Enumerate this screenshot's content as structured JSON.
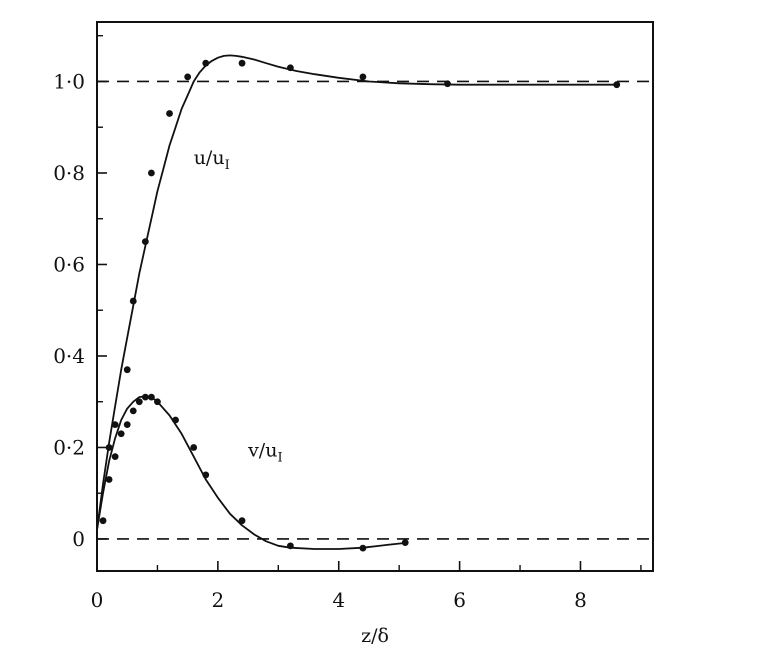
{
  "chart_data": {
    "type": "line",
    "title": "",
    "xlabel": "z/δ",
    "ylabel": "",
    "xlim": [
      0,
      9.2
    ],
    "ylim": [
      -0.07,
      1.13
    ],
    "x_ticks": [
      0,
      2,
      4,
      6,
      8
    ],
    "x_tick_labels": [
      "0",
      "2",
      "4",
      "6",
      "8"
    ],
    "y_ticks": [
      0,
      0.2,
      0.4,
      0.6,
      0.8,
      1.0
    ],
    "y_tick_labels": [
      "0",
      "0·2",
      "0·4",
      "0·6",
      "0·8",
      "1·0"
    ],
    "reference_lines": [
      {
        "y": 1.0,
        "style": "dashed"
      },
      {
        "y": 0.0,
        "style": "dashed"
      }
    ],
    "series": [
      {
        "name": "u/u",
        "name_subscript": "I",
        "color": "#111111",
        "curve": {
          "x": [
            0,
            0.1,
            0.2,
            0.3,
            0.4,
            0.5,
            0.6,
            0.7,
            0.8,
            0.9,
            1.0,
            1.1,
            1.2,
            1.3,
            1.4,
            1.5,
            1.6,
            1.7,
            1.8,
            1.9,
            2.0,
            2.1,
            2.2,
            2.3,
            2.4,
            2.6,
            2.8,
            3.0,
            3.3,
            3.6,
            4.0,
            4.5,
            5.0,
            5.5,
            6.0,
            7.0,
            8.0,
            8.65
          ],
          "y": [
            0.02,
            0.12,
            0.21,
            0.29,
            0.37,
            0.44,
            0.51,
            0.58,
            0.64,
            0.7,
            0.76,
            0.81,
            0.86,
            0.9,
            0.94,
            0.97,
            1.0,
            1.02,
            1.035,
            1.045,
            1.052,
            1.056,
            1.057,
            1.056,
            1.054,
            1.048,
            1.04,
            1.032,
            1.023,
            1.016,
            1.008,
            1.0,
            0.996,
            0.994,
            0.993,
            0.993,
            0.993,
            0.993
          ]
        },
        "points": {
          "x": [
            0.2,
            0.3,
            0.5,
            0.6,
            0.8,
            0.9,
            1.2,
            1.5,
            1.8,
            2.4,
            3.2,
            4.4,
            5.8,
            8.6
          ],
          "y": [
            0.2,
            0.25,
            0.37,
            0.52,
            0.65,
            0.8,
            0.93,
            1.01,
            1.04,
            1.04,
            1.03,
            1.01,
            0.995,
            0.993
          ]
        }
      },
      {
        "name": "v/u",
        "name_subscript": "I",
        "color": "#111111",
        "curve": {
          "x": [
            0,
            0.1,
            0.2,
            0.3,
            0.4,
            0.5,
            0.6,
            0.7,
            0.8,
            0.9,
            1.0,
            1.2,
            1.4,
            1.6,
            1.8,
            2.0,
            2.2,
            2.4,
            2.6,
            2.8,
            3.0,
            3.2,
            3.6,
            4.0,
            4.4,
            4.8,
            5.15
          ],
          "y": [
            0.02,
            0.1,
            0.17,
            0.22,
            0.26,
            0.285,
            0.3,
            0.31,
            0.312,
            0.31,
            0.3,
            0.27,
            0.23,
            0.18,
            0.13,
            0.09,
            0.055,
            0.03,
            0.01,
            -0.005,
            -0.015,
            -0.019,
            -0.022,
            -0.022,
            -0.019,
            -0.013,
            -0.008
          ]
        },
        "points": {
          "x": [
            0.1,
            0.2,
            0.3,
            0.4,
            0.5,
            0.6,
            0.7,
            0.8,
            0.9,
            1.0,
            1.3,
            1.6,
            1.8,
            2.4,
            3.2,
            4.4,
            5.1
          ],
          "y": [
            0.04,
            0.13,
            0.18,
            0.23,
            0.25,
            0.28,
            0.3,
            0.31,
            0.31,
            0.3,
            0.26,
            0.2,
            0.14,
            0.04,
            -0.015,
            -0.02,
            -0.008
          ]
        }
      }
    ],
    "curve_labels": [
      {
        "text": "u/u",
        "sub": "I",
        "x": 1.6,
        "y": 0.82
      },
      {
        "text": "v/u",
        "sub": "I",
        "x": 2.5,
        "y": 0.18
      }
    ]
  }
}
